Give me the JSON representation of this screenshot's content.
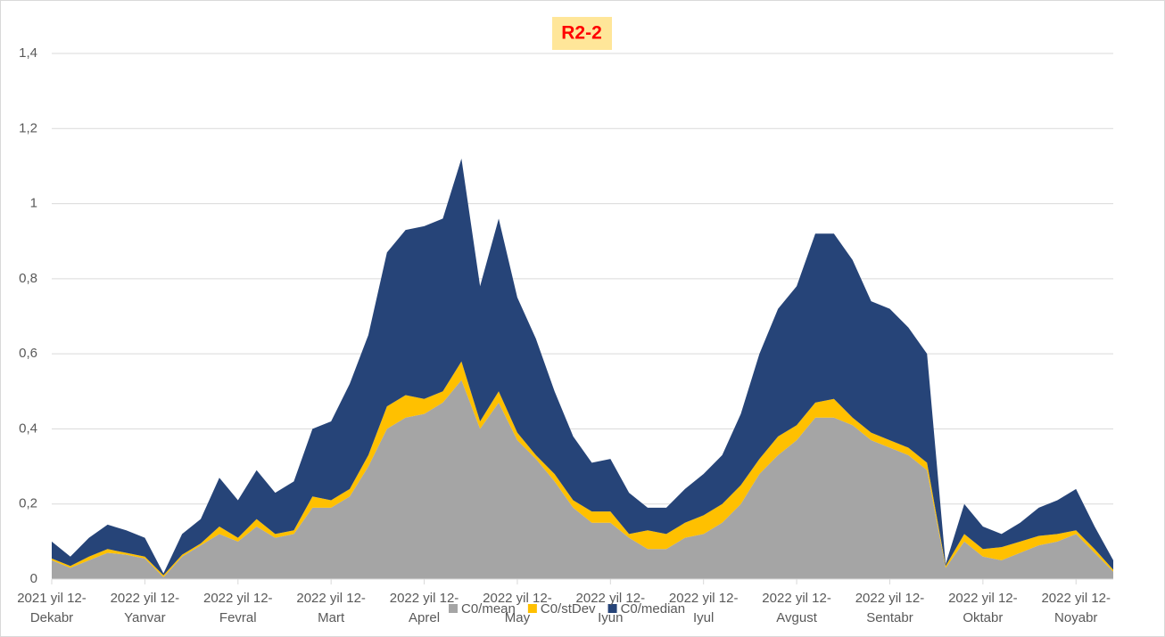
{
  "chart_data": {
    "type": "stacked-area",
    "title": "R2-2",
    "categories": [
      "2021 yil 12-\nDekabr",
      null,
      null,
      null,
      null,
      "2022 yil 12-\nYanvar",
      null,
      null,
      null,
      null,
      "2022 yil 12-\nFevral",
      null,
      null,
      null,
      null,
      "2022 yil 12-\nMart",
      null,
      null,
      null,
      null,
      "2022 yil 12-\nAprel",
      null,
      null,
      null,
      null,
      "2022 yil 12-\nMay",
      null,
      null,
      null,
      null,
      "2022 yil 12-\nIyun",
      null,
      null,
      null,
      null,
      "2022 yil 12-\nIyul",
      null,
      null,
      null,
      null,
      "2022 yil 12-\nAvgust",
      null,
      null,
      null,
      null,
      "2022 yil 12-\nSentabr",
      null,
      null,
      null,
      null,
      "2022 yil 12-\nOktabr",
      null,
      null,
      null,
      null,
      "2022 yil 12-\nNoyabr",
      null,
      null
    ],
    "series": [
      {
        "name": "C0/mean",
        "color": "#a5a5a5",
        "values": [
          0.05,
          0.03,
          0.05,
          0.07,
          0.065,
          0.055,
          0.005,
          0.06,
          0.09,
          0.12,
          0.1,
          0.14,
          0.11,
          0.12,
          0.19,
          0.19,
          0.22,
          0.3,
          0.4,
          0.43,
          0.44,
          0.47,
          0.53,
          0.4,
          0.47,
          0.37,
          0.32,
          0.26,
          0.19,
          0.15,
          0.15,
          0.11,
          0.08,
          0.08,
          0.11,
          0.12,
          0.15,
          0.2,
          0.28,
          0.33,
          0.37,
          0.43,
          0.43,
          0.41,
          0.37,
          0.35,
          0.33,
          0.29,
          0.03,
          0.1,
          0.06,
          0.05,
          0.07,
          0.09,
          0.1,
          0.12,
          0.07,
          0.02
        ]
      },
      {
        "name": "C0/stDev",
        "color": "#ffc000",
        "values": [
          0.005,
          0.005,
          0.01,
          0.01,
          0.005,
          0.005,
          0.005,
          0.005,
          0.005,
          0.02,
          0.01,
          0.02,
          0.01,
          0.01,
          0.03,
          0.02,
          0.02,
          0.03,
          0.06,
          0.06,
          0.04,
          0.03,
          0.05,
          0.02,
          0.03,
          0.02,
          0.01,
          0.02,
          0.02,
          0.03,
          0.03,
          0.01,
          0.05,
          0.04,
          0.04,
          0.05,
          0.05,
          0.05,
          0.04,
          0.05,
          0.04,
          0.04,
          0.05,
          0.02,
          0.02,
          0.02,
          0.02,
          0.02,
          0.005,
          0.02,
          0.02,
          0.035,
          0.03,
          0.025,
          0.02,
          0.01,
          0.01,
          0.005
        ]
      },
      {
        "name": "C0/median",
        "color": "#264478",
        "values": [
          0.045,
          0.025,
          0.05,
          0.065,
          0.06,
          0.05,
          0.005,
          0.055,
          0.065,
          0.13,
          0.1,
          0.13,
          0.11,
          0.13,
          0.18,
          0.21,
          0.28,
          0.32,
          0.41,
          0.44,
          0.46,
          0.46,
          0.54,
          0.36,
          0.46,
          0.36,
          0.31,
          0.22,
          0.17,
          0.13,
          0.14,
          0.11,
          0.06,
          0.07,
          0.09,
          0.11,
          0.13,
          0.19,
          0.28,
          0.34,
          0.37,
          0.45,
          0.44,
          0.42,
          0.35,
          0.35,
          0.32,
          0.29,
          0.005,
          0.08,
          0.06,
          0.035,
          0.05,
          0.075,
          0.09,
          0.11,
          0.06,
          0.025
        ]
      }
    ],
    "ylim": [
      0,
      1.4
    ],
    "yticks": [
      0,
      {
        "value": 0.2,
        "label": "0,2"
      },
      {
        "value": 0.4,
        "label": "0,4"
      },
      {
        "value": 0.6,
        "label": "0,6"
      },
      {
        "value": 0.8,
        "label": "0,8"
      },
      1,
      {
        "value": 1.2,
        "label": "1,2"
      },
      {
        "value": 1.4,
        "label": "1,4"
      }
    ],
    "grid": true
  }
}
